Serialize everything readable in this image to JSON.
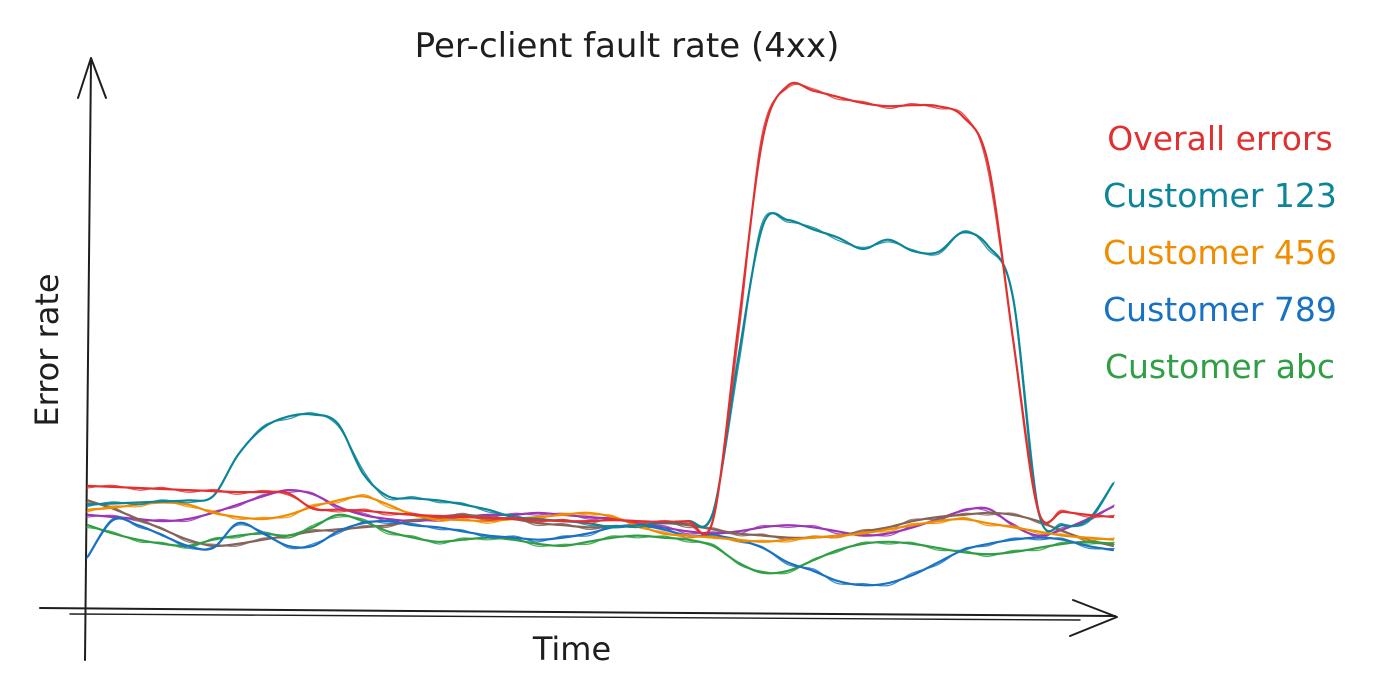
{
  "chart_data": {
    "type": "line",
    "title": "Per-client fault rate (4xx)",
    "xlabel": "Time",
    "ylabel": "Error rate",
    "x": [
      0,
      25,
      50,
      75,
      100,
      125,
      150,
      175,
      200,
      225,
      250,
      275,
      300,
      325,
      350,
      375,
      400,
      425,
      450,
      475,
      500,
      525,
      550,
      575,
      600,
      625,
      650,
      675,
      700,
      725,
      750,
      775,
      800,
      825,
      850,
      875,
      900,
      925,
      950,
      975,
      1000,
      1025
    ],
    "xlim": [
      0,
      1040
    ],
    "ylim": [
      0,
      520
    ],
    "grid": false,
    "legend_position": "right",
    "series": [
      {
        "name": "Overall errors",
        "color": "#e03131",
        "values": [
          118,
          117,
          116,
          115,
          114,
          113,
          112,
          112,
          111,
          96,
          95,
          94,
          92,
          90,
          89,
          88,
          87,
          86,
          85,
          84,
          84,
          85,
          84,
          83,
          84,
          85,
          270,
          455,
          505,
          500,
          494,
          488,
          485,
          486,
          485,
          475,
          430,
          260,
          95,
          93,
          90,
          88
        ]
      },
      {
        "name": "Customer 123",
        "color": "#0c8599",
        "values": [
          100,
          101,
          102,
          103,
          104,
          108,
          148,
          174,
          185,
          187,
          178,
          130,
          108,
          106,
          104,
          100,
          95,
          88,
          86,
          84,
          82,
          78,
          80,
          82,
          84,
          92,
          240,
          370,
          375,
          366,
          358,
          347,
          356,
          345,
          344,
          363,
          350,
          300,
          95,
          80,
          85,
          120
        ]
      },
      {
        "name": "Customer 456",
        "color": "#f08c00",
        "values": [
          95,
          97,
          100,
          102,
          100,
          92,
          88,
          86,
          90,
          98,
          104,
          108,
          100,
          90,
          86,
          85,
          84,
          86,
          88,
          90,
          92,
          88,
          80,
          72,
          70,
          68,
          66,
          64,
          66,
          68,
          70,
          72,
          76,
          80,
          84,
          86,
          82,
          78,
          74,
          70,
          68,
          66
        ]
      },
      {
        "name": "Customer 789",
        "color": "#1971c2",
        "values": [
          50,
          85,
          80,
          70,
          60,
          58,
          82,
          72,
          60,
          60,
          74,
          82,
          84,
          80,
          78,
          74,
          70,
          68,
          66,
          68,
          72,
          78,
          80,
          76,
          70,
          70,
          66,
          58,
          44,
          36,
          26,
          22,
          24,
          32,
          44,
          56,
          62,
          66,
          68,
          66,
          60,
          56
        ]
      },
      {
        "name": "Customer abc",
        "color": "#2f9e44",
        "values": [
          80,
          72,
          66,
          62,
          60,
          66,
          70,
          72,
          70,
          78,
          90,
          84,
          74,
          68,
          64,
          66,
          68,
          66,
          62,
          60,
          64,
          68,
          70,
          68,
          66,
          60,
          44,
          34,
          36,
          46,
          56,
          62,
          64,
          62,
          58,
          54,
          52,
          54,
          58,
          62,
          64,
          62
        ]
      }
    ]
  },
  "extra_lines": [
    {
      "color": "#9c36b5",
      "values": [
        90,
        88,
        86,
        84,
        86,
        92,
        100,
        108,
        114,
        110,
        98,
        90,
        86,
        84,
        86,
        88,
        90,
        90,
        92,
        90,
        88,
        86,
        82,
        78,
        74,
        72,
        74,
        78,
        80,
        78,
        74,
        70,
        72,
        78,
        86,
        94,
        96,
        80,
        70,
        76,
        86,
        98
      ]
    },
    {
      "color": "#846358",
      "values": [
        104,
        96,
        86,
        76,
        66,
        60,
        62,
        66,
        70,
        74,
        76,
        78,
        80,
        84,
        88,
        90,
        88,
        86,
        82,
        80,
        78,
        78,
        80,
        82,
        80,
        76,
        72,
        70,
        68,
        68,
        70,
        74,
        78,
        84,
        88,
        90,
        92,
        90,
        84,
        74,
        66,
        60
      ]
    }
  ]
}
